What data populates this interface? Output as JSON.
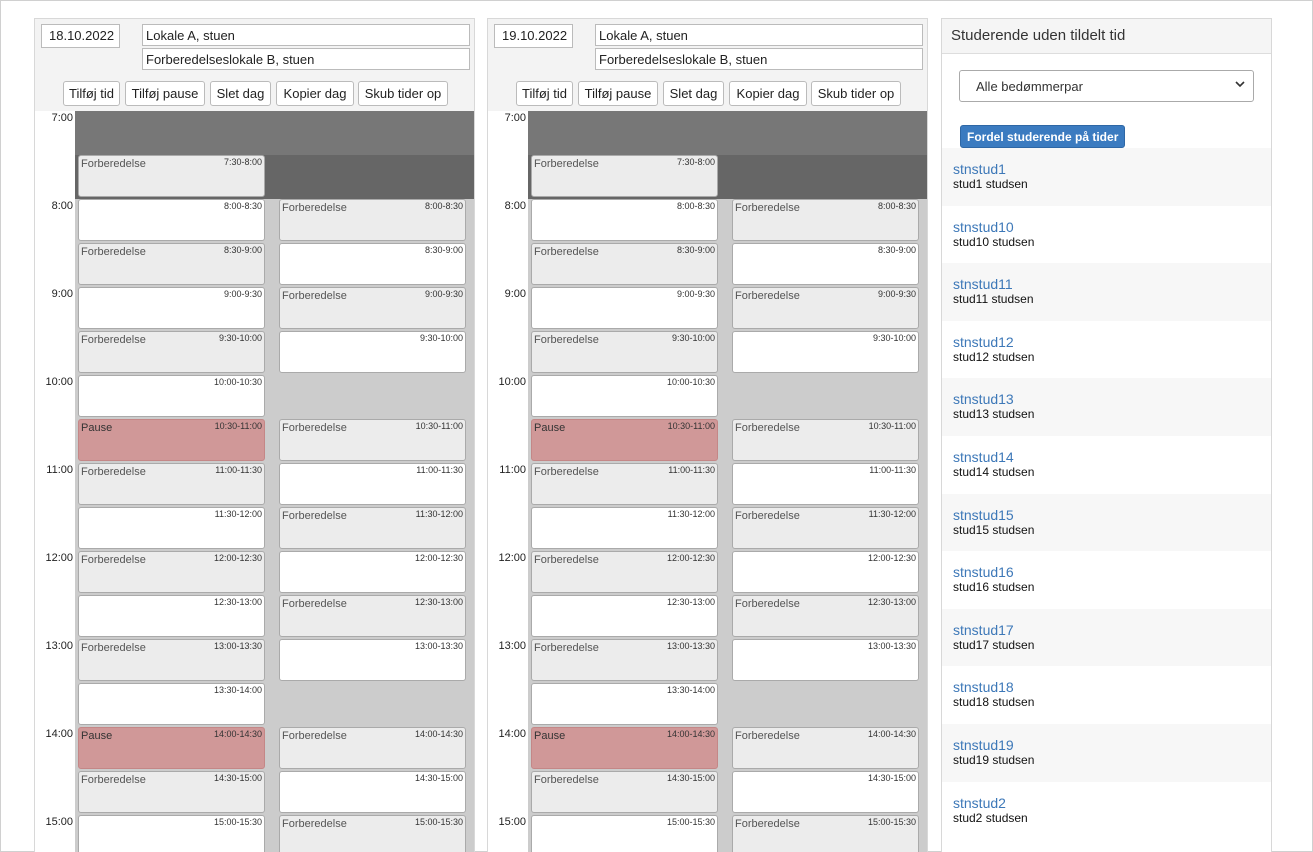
{
  "days": [
    {
      "date": "18.10.2022",
      "room1": "Lokale A, stuen",
      "room2": "Forberedelseslokale B, stuen",
      "slots": [
        {
          "col": 0,
          "start": "7:30",
          "kind": "prep",
          "label": "Forberedelse",
          "time": "7:30-8:00"
        },
        {
          "col": 0,
          "start": "8:00",
          "kind": "free",
          "label": "",
          "time": "8:00-8:30"
        },
        {
          "col": 0,
          "start": "8:30",
          "kind": "prep",
          "label": "Forberedelse",
          "time": "8:30-9:00"
        },
        {
          "col": 0,
          "start": "9:00",
          "kind": "free",
          "label": "",
          "time": "9:00-9:30"
        },
        {
          "col": 0,
          "start": "9:30",
          "kind": "prep",
          "label": "Forberedelse",
          "time": "9:30-10:00"
        },
        {
          "col": 0,
          "start": "10:00",
          "kind": "free",
          "label": "",
          "time": "10:00-10:30"
        },
        {
          "col": 0,
          "start": "10:30",
          "kind": "pause",
          "label": "Pause",
          "time": "10:30-11:00"
        },
        {
          "col": 0,
          "start": "11:00",
          "kind": "prep",
          "label": "Forberedelse",
          "time": "11:00-11:30"
        },
        {
          "col": 0,
          "start": "11:30",
          "kind": "free",
          "label": "",
          "time": "11:30-12:00"
        },
        {
          "col": 0,
          "start": "12:00",
          "kind": "prep",
          "label": "Forberedelse",
          "time": "12:00-12:30"
        },
        {
          "col": 0,
          "start": "12:30",
          "kind": "free",
          "label": "",
          "time": "12:30-13:00"
        },
        {
          "col": 0,
          "start": "13:00",
          "kind": "prep",
          "label": "Forberedelse",
          "time": "13:00-13:30"
        },
        {
          "col": 0,
          "start": "13:30",
          "kind": "free",
          "label": "",
          "time": "13:30-14:00"
        },
        {
          "col": 0,
          "start": "14:00",
          "kind": "pause",
          "label": "Pause",
          "time": "14:00-14:30"
        },
        {
          "col": 0,
          "start": "14:30",
          "kind": "prep",
          "label": "Forberedelse",
          "time": "14:30-15:00"
        },
        {
          "col": 0,
          "start": "15:00",
          "kind": "free",
          "label": "",
          "time": "15:00-15:30"
        },
        {
          "col": 1,
          "start": "8:00",
          "kind": "prep",
          "label": "Forberedelse",
          "time": "8:00-8:30"
        },
        {
          "col": 1,
          "start": "8:30",
          "kind": "free",
          "label": "",
          "time": "8:30-9:00"
        },
        {
          "col": 1,
          "start": "9:00",
          "kind": "prep",
          "label": "Forberedelse",
          "time": "9:00-9:30"
        },
        {
          "col": 1,
          "start": "9:30",
          "kind": "free",
          "label": "",
          "time": "9:30-10:00"
        },
        {
          "col": 1,
          "start": "10:30",
          "kind": "prep",
          "label": "Forberedelse",
          "time": "10:30-11:00"
        },
        {
          "col": 1,
          "start": "11:00",
          "kind": "free",
          "label": "",
          "time": "11:00-11:30"
        },
        {
          "col": 1,
          "start": "11:30",
          "kind": "prep",
          "label": "Forberedelse",
          "time": "11:30-12:00"
        },
        {
          "col": 1,
          "start": "12:00",
          "kind": "free",
          "label": "",
          "time": "12:00-12:30"
        },
        {
          "col": 1,
          "start": "12:30",
          "kind": "prep",
          "label": "Forberedelse",
          "time": "12:30-13:00"
        },
        {
          "col": 1,
          "start": "13:00",
          "kind": "free",
          "label": "",
          "time": "13:00-13:30"
        },
        {
          "col": 1,
          "start": "14:00",
          "kind": "prep",
          "label": "Forberedelse",
          "time": "14:00-14:30"
        },
        {
          "col": 1,
          "start": "14:30",
          "kind": "free",
          "label": "",
          "time": "14:30-15:00"
        },
        {
          "col": 1,
          "start": "15:00",
          "kind": "prep",
          "label": "Forberedelse",
          "time": "15:00-15:30"
        }
      ]
    },
    {
      "date": "19.10.2022",
      "room1": "Lokale A, stuen",
      "room2": "Forberedelseslokale B, stuen",
      "slots": [
        {
          "col": 0,
          "start": "7:30",
          "kind": "prep",
          "label": "Forberedelse",
          "time": "7:30-8:00"
        },
        {
          "col": 0,
          "start": "8:00",
          "kind": "free",
          "label": "",
          "time": "8:00-8:30"
        },
        {
          "col": 0,
          "start": "8:30",
          "kind": "prep",
          "label": "Forberedelse",
          "time": "8:30-9:00"
        },
        {
          "col": 0,
          "start": "9:00",
          "kind": "free",
          "label": "",
          "time": "9:00-9:30"
        },
        {
          "col": 0,
          "start": "9:30",
          "kind": "prep",
          "label": "Forberedelse",
          "time": "9:30-10:00"
        },
        {
          "col": 0,
          "start": "10:00",
          "kind": "free",
          "label": "",
          "time": "10:00-10:30"
        },
        {
          "col": 0,
          "start": "10:30",
          "kind": "pause",
          "label": "Pause",
          "time": "10:30-11:00"
        },
        {
          "col": 0,
          "start": "11:00",
          "kind": "prep",
          "label": "Forberedelse",
          "time": "11:00-11:30"
        },
        {
          "col": 0,
          "start": "11:30",
          "kind": "free",
          "label": "",
          "time": "11:30-12:00"
        },
        {
          "col": 0,
          "start": "12:00",
          "kind": "prep",
          "label": "Forberedelse",
          "time": "12:00-12:30"
        },
        {
          "col": 0,
          "start": "12:30",
          "kind": "free",
          "label": "",
          "time": "12:30-13:00"
        },
        {
          "col": 0,
          "start": "13:00",
          "kind": "prep",
          "label": "Forberedelse",
          "time": "13:00-13:30"
        },
        {
          "col": 0,
          "start": "13:30",
          "kind": "free",
          "label": "",
          "time": "13:30-14:00"
        },
        {
          "col": 0,
          "start": "14:00",
          "kind": "pause",
          "label": "Pause",
          "time": "14:00-14:30"
        },
        {
          "col": 0,
          "start": "14:30",
          "kind": "prep",
          "label": "Forberedelse",
          "time": "14:30-15:00"
        },
        {
          "col": 0,
          "start": "15:00",
          "kind": "free",
          "label": "",
          "time": "15:00-15:30"
        },
        {
          "col": 1,
          "start": "8:00",
          "kind": "prep",
          "label": "Forberedelse",
          "time": "8:00-8:30"
        },
        {
          "col": 1,
          "start": "8:30",
          "kind": "free",
          "label": "",
          "time": "8:30-9:00"
        },
        {
          "col": 1,
          "start": "9:00",
          "kind": "prep",
          "label": "Forberedelse",
          "time": "9:00-9:30"
        },
        {
          "col": 1,
          "start": "9:30",
          "kind": "free",
          "label": "",
          "time": "9:30-10:00"
        },
        {
          "col": 1,
          "start": "10:30",
          "kind": "prep",
          "label": "Forberedelse",
          "time": "10:30-11:00"
        },
        {
          "col": 1,
          "start": "11:00",
          "kind": "free",
          "label": "",
          "time": "11:00-11:30"
        },
        {
          "col": 1,
          "start": "11:30",
          "kind": "prep",
          "label": "Forberedelse",
          "time": "11:30-12:00"
        },
        {
          "col": 1,
          "start": "12:00",
          "kind": "free",
          "label": "",
          "time": "12:00-12:30"
        },
        {
          "col": 1,
          "start": "12:30",
          "kind": "prep",
          "label": "Forberedelse",
          "time": "12:30-13:00"
        },
        {
          "col": 1,
          "start": "13:00",
          "kind": "free",
          "label": "",
          "time": "13:00-13:30"
        },
        {
          "col": 1,
          "start": "14:00",
          "kind": "prep",
          "label": "Forberedelse",
          "time": "14:00-14:30"
        },
        {
          "col": 1,
          "start": "14:30",
          "kind": "free",
          "label": "",
          "time": "14:30-15:00"
        },
        {
          "col": 1,
          "start": "15:00",
          "kind": "prep",
          "label": "Forberedelse",
          "time": "15:00-15:30"
        }
      ]
    }
  ],
  "buttons": [
    "Tilføj tid",
    "Tilføj pause",
    "Slet dag",
    "Kopier dag",
    "Skub tider op"
  ],
  "hours": [
    "7:00",
    "8:00",
    "9:00",
    "10:00",
    "11:00",
    "12:00",
    "13:00",
    "14:00",
    "15:00"
  ],
  "panel": {
    "title": "Studerende uden tildelt tid",
    "select_value": "Alle bedømmerpar",
    "fordel_label": "Fordel studerende på tider",
    "students": [
      {
        "user": "stnstud1",
        "name": "stud1 studsen"
      },
      {
        "user": "stnstud10",
        "name": "stud10 studsen"
      },
      {
        "user": "stnstud11",
        "name": "stud11 studsen"
      },
      {
        "user": "stnstud12",
        "name": "stud12 studsen"
      },
      {
        "user": "stnstud13",
        "name": "stud13 studsen"
      },
      {
        "user": "stnstud14",
        "name": "stud14 studsen"
      },
      {
        "user": "stnstud15",
        "name": "stud15 studsen"
      },
      {
        "user": "stnstud16",
        "name": "stud16 studsen"
      },
      {
        "user": "stnstud17",
        "name": "stud17 studsen"
      },
      {
        "user": "stnstud18",
        "name": "stud18 studsen"
      },
      {
        "user": "stnstud19",
        "name": "stud19 studsen"
      },
      {
        "user": "stnstud2",
        "name": "stud2 studsen"
      }
    ]
  },
  "colors": {
    "accent": "#3b7bc0",
    "pause": "#d09898",
    "link": "#3d78b8"
  }
}
